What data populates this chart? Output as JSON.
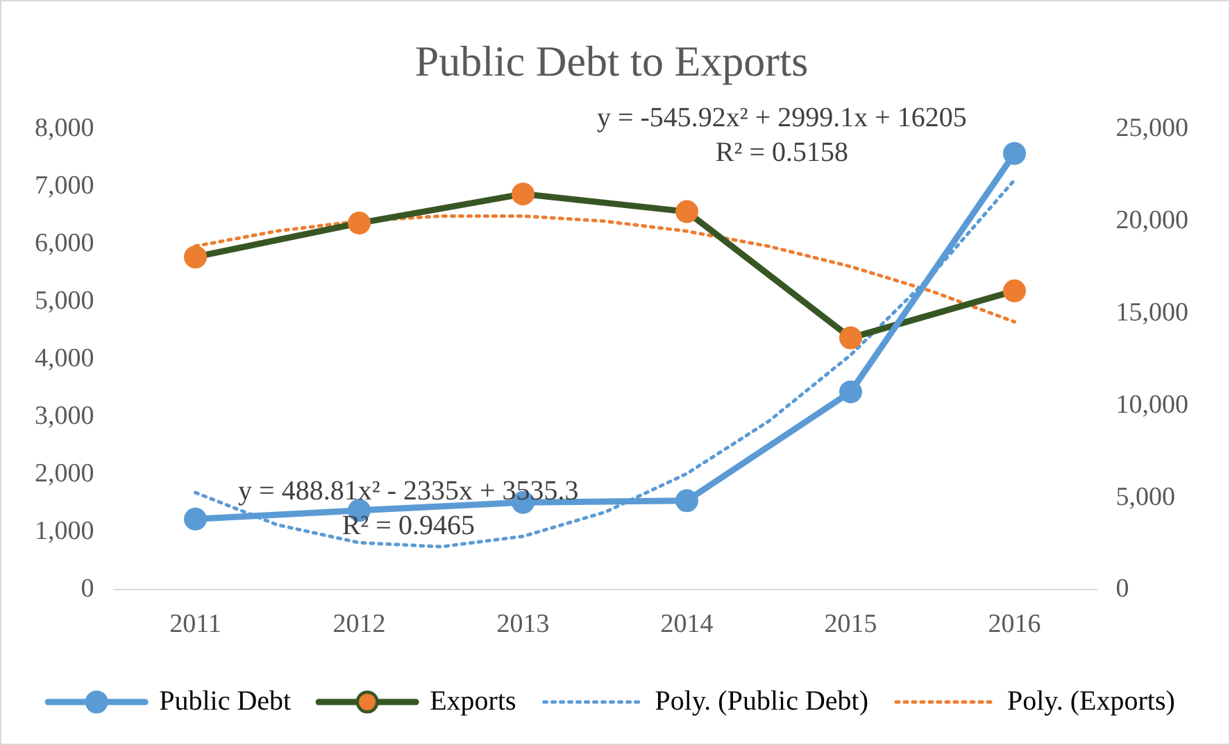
{
  "chart_data": {
    "type": "line",
    "title": "Public Debt to Exports",
    "x": [
      2011,
      2012,
      2013,
      2014,
      2015,
      2016
    ],
    "xlim": [
      2010.5,
      2016.5
    ],
    "xticks": [
      2011,
      2012,
      2013,
      2014,
      2015,
      2016
    ],
    "ylim": [
      0,
      8000
    ],
    "yticks": [
      0,
      {
        "value": 1000,
        "label": "1,000"
      },
      {
        "value": 2000,
        "label": "2,000"
      },
      {
        "value": 3000,
        "label": "3,000"
      },
      {
        "value": 4000,
        "label": "4,000"
      },
      {
        "value": 5000,
        "label": "5,000"
      },
      {
        "value": 6000,
        "label": "6,000"
      },
      {
        "value": 7000,
        "label": "7,000"
      },
      {
        "value": 8000,
        "label": "8,000"
      }
    ],
    "y2lim": [
      0,
      25000
    ],
    "y2ticks": [
      0,
      {
        "value": 5000,
        "label": "5,000"
      },
      {
        "value": 10000,
        "label": "10,000"
      },
      {
        "value": 15000,
        "label": "15,000"
      },
      {
        "value": 20000,
        "label": "20,000"
      },
      {
        "value": 25000,
        "label": "25,000"
      }
    ],
    "series": [
      {
        "name": "Public Debt",
        "color": "#5b9bd5",
        "values": [
          1230,
          1380,
          1520,
          1550,
          3440,
          7580
        ],
        "marker": "circle",
        "line_style": "solid"
      },
      {
        "name": "Exports",
        "color": "#375623",
        "values": [
          18070,
          19910,
          21490,
          20530,
          13680,
          16230
        ],
        "axis": "y2",
        "marker": "circle",
        "colors": [
          "#ed7d31",
          "#ed7d31",
          "#ed7d31",
          "#ed7d31",
          "#ed7d31",
          "#ed7d31"
        ],
        "line_style": "solid"
      },
      {
        "name": "Poly. (Public Debt)",
        "color": "#5b9bd5",
        "type": "line",
        "x": [
          2011,
          2011.5,
          2012,
          2012.5,
          2013,
          2013.5,
          2014,
          2014.5,
          2015,
          2015.5,
          2016
        ],
        "values": [
          1690,
          1130,
          820,
          750,
          930,
          1350,
          2020,
          2930,
          4080,
          5480,
          7120
        ],
        "marker": "none",
        "line_style": "dotted"
      },
      {
        "name": "Poly. (Exports)",
        "color": "#ed7d31",
        "type": "line",
        "axis": "y2",
        "x": [
          2011,
          2011.5,
          2012,
          2012.5,
          2013,
          2013.5,
          2014,
          2014.5,
          2015,
          2015.5,
          2016
        ],
        "values": [
          18660,
          19480,
          20020,
          20290,
          20290,
          20010,
          19470,
          18650,
          17550,
          16190,
          14550
        ],
        "marker": "none",
        "line_style": "dotted"
      }
    ],
    "annotations": [
      "y = -545.92x² + 2999.1x + 16205\nR² = 0.5158",
      "y = 488.81x² - 2335x + 3535.3\nR² = 0.9465"
    ],
    "grid": false,
    "legend": "bottom"
  }
}
